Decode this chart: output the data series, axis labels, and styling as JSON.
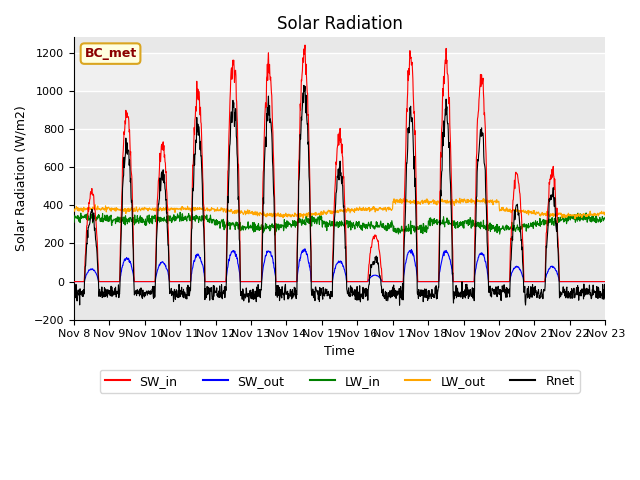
{
  "title": "Solar Radiation",
  "ylabel": "Solar Radiation (W/m2)",
  "xlabel": "Time",
  "ylim": [
    -200,
    1280
  ],
  "yticks": [
    -200,
    0,
    200,
    400,
    600,
    800,
    1000,
    1200
  ],
  "n_days": 15,
  "xtick_labels": [
    "Nov 8",
    "Nov 9",
    "Nov 10",
    "Nov 11",
    "Nov 12",
    "Nov 13",
    "Nov 14",
    "Nov 15",
    "Nov 16",
    "Nov 17",
    "Nov 18",
    "Nov 19",
    "Nov 20",
    "Nov 21",
    "Nov 22",
    "Nov 23"
  ],
  "grid_color": "#d8d8d8",
  "bg_color": "#e8e8e8",
  "annotation_text": "BC_met",
  "sw_in_peaks": [
    470,
    880,
    720,
    990,
    1150,
    1130,
    1190,
    760,
    240,
    1160,
    1150,
    1060,
    560,
    560,
    0
  ],
  "sw_out_scale": 0.14,
  "lw_in_base": 315,
  "lw_out_base": 370,
  "rnet_night": -60,
  "title_fontsize": 12,
  "label_fontsize": 9,
  "tick_fontsize": 8
}
